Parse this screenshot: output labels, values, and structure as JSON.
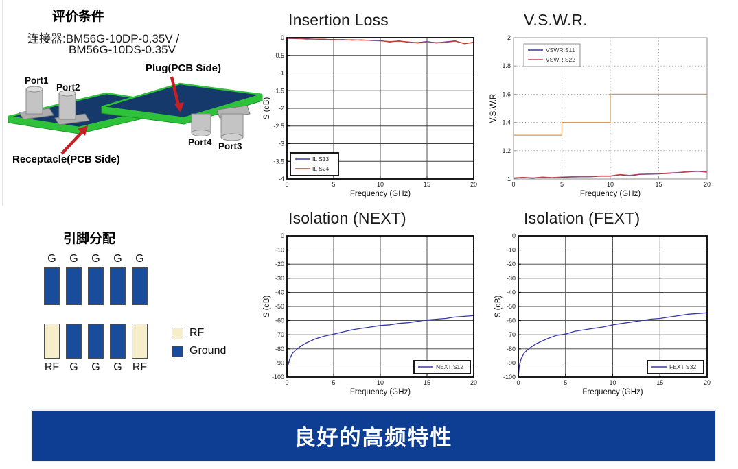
{
  "evaluation": {
    "title": "评价条件",
    "connector_line1": "连接器:BM56G-10DP-0.35V /",
    "connector_line2": "BM56G-10DS-0.35V",
    "diagram_labels": {
      "port1": "Port1",
      "port2": "Port2",
      "port3": "Port3",
      "port4": "Port4",
      "plug": "Plug(PCB Side)",
      "receptacle": "Receptacle(PCB Side)"
    }
  },
  "pin_assignment": {
    "title": "引脚分配",
    "top_labels": [
      "G",
      "G",
      "G",
      "G",
      "G"
    ],
    "bottom_labels": [
      "RF",
      "G",
      "G",
      "G",
      "RF"
    ],
    "legend": [
      {
        "label": "RF",
        "type": "rf"
      },
      {
        "label": "Ground",
        "type": "ground"
      }
    ],
    "colors": {
      "rf": "#f6eecb",
      "ground": "#1a4c9c"
    }
  },
  "banner": {
    "text": "良好的高频特性",
    "color": "#0d3e94"
  },
  "chart_data": [
    {
      "type": "line",
      "title": "Insertion Loss",
      "xlabel": "Frequency (GHz)",
      "ylabel": "S (dB)",
      "xlim": [
        0,
        20
      ],
      "ylim": [
        -4,
        0
      ],
      "xticks": [
        0,
        5,
        10,
        15,
        20
      ],
      "yticks": [
        0,
        -0.5,
        -1,
        -1.5,
        -2,
        -2.5,
        -3,
        -3.5,
        -4
      ],
      "grid": "solid",
      "legend_pos": "bottom-left",
      "series": [
        {
          "name": "IL S13",
          "color": "#3a3aac",
          "x": [
            0,
            1,
            2,
            3,
            4,
            5,
            6,
            7,
            8,
            9,
            10,
            11,
            12,
            13,
            14,
            15,
            16,
            17,
            18,
            19,
            20
          ],
          "y": [
            -0.02,
            -0.03,
            -0.03,
            -0.04,
            -0.05,
            -0.05,
            -0.06,
            -0.06,
            -0.07,
            -0.07,
            -0.08,
            -0.12,
            -0.09,
            -0.13,
            -0.14,
            -0.11,
            -0.15,
            -0.12,
            -0.09,
            -0.17,
            -0.13
          ]
        },
        {
          "name": "IL S24",
          "color": "#c44134",
          "x": [
            0,
            1,
            2,
            3,
            4,
            5,
            6,
            7,
            8,
            9,
            10,
            11,
            12,
            13,
            14,
            15,
            16,
            17,
            18,
            19,
            20
          ],
          "y": [
            -0.02,
            -0.02,
            -0.04,
            -0.04,
            -0.04,
            -0.06,
            -0.05,
            -0.07,
            -0.06,
            -0.08,
            -0.09,
            -0.11,
            -0.1,
            -0.12,
            -0.15,
            -0.12,
            -0.14,
            -0.13,
            -0.1,
            -0.16,
            -0.14
          ]
        }
      ]
    },
    {
      "type": "line",
      "title": "V.S.W.R.",
      "xlabel": "Frequency (GHz)",
      "ylabel": "V.S.W.R",
      "xlim": [
        0,
        20
      ],
      "ylim": [
        1,
        2
      ],
      "xticks": [
        0,
        5,
        10,
        15,
        20
      ],
      "yticks": [
        1,
        1.2,
        1.4,
        1.6,
        1.8,
        2
      ],
      "grid": "dotted",
      "legend_pos": "top-left",
      "series": [
        {
          "name": "VSWR S11",
          "color": "#3c3c92",
          "x": [
            0,
            1,
            2,
            3,
            4,
            5,
            6,
            7,
            8,
            9,
            10,
            11,
            12,
            13,
            14,
            15,
            16,
            17,
            18,
            19,
            20
          ],
          "y": [
            1.005,
            1.01,
            1.006,
            1.012,
            1.008,
            1.012,
            1.014,
            1.016,
            1.016,
            1.02,
            1.02,
            1.03,
            1.022,
            1.032,
            1.034,
            1.036,
            1.04,
            1.044,
            1.05,
            1.054,
            1.048
          ]
        },
        {
          "name": "VSWR S22",
          "color": "#c24854",
          "x": [
            0,
            1,
            2,
            3,
            4,
            5,
            6,
            7,
            8,
            9,
            10,
            11,
            12,
            13,
            14,
            15,
            16,
            17,
            18,
            19,
            20
          ],
          "y": [
            1.008,
            1.012,
            1.008,
            1.014,
            1.01,
            1.014,
            1.016,
            1.018,
            1.018,
            1.022,
            1.022,
            1.032,
            1.026,
            1.034,
            1.036,
            1.038,
            1.042,
            1.046,
            1.052,
            1.056,
            1.05
          ]
        },
        {
          "name": "spec limit",
          "color": "#d29a58",
          "in_legend": false,
          "x": [
            0,
            5,
            5,
            10,
            10,
            20
          ],
          "y": [
            1.31,
            1.31,
            1.4,
            1.4,
            1.6,
            1.6
          ]
        }
      ]
    },
    {
      "type": "line",
      "title": "Isolation (NEXT)",
      "xlabel": "Frequency (GHz)",
      "ylabel": "S (dB)",
      "xlim": [
        0,
        20
      ],
      "ylim": [
        -100,
        0
      ],
      "xticks": [
        0,
        5,
        10,
        15,
        20
      ],
      "yticks": [
        0,
        -10,
        -20,
        -30,
        -40,
        -50,
        -60,
        -70,
        -80,
        -90,
        -100
      ],
      "grid": "solid",
      "legend_pos": "bottom-right",
      "series": [
        {
          "name": "NEXT S12",
          "color": "#3737aa",
          "x": [
            0,
            0.1,
            0.3,
            0.6,
            1,
            1.5,
            2,
            2.5,
            3,
            4,
            5,
            6,
            7,
            8,
            9,
            10,
            11,
            12,
            13,
            14,
            15,
            16,
            17,
            18,
            19,
            20
          ],
          "y": [
            -100,
            -92,
            -87,
            -83,
            -80.5,
            -78,
            -76,
            -74.5,
            -73,
            -71,
            -69.5,
            -68,
            -66.5,
            -65.5,
            -64.5,
            -63.5,
            -63,
            -62,
            -61.5,
            -60.5,
            -59.5,
            -59,
            -58.5,
            -57.5,
            -57,
            -56.5
          ]
        }
      ]
    },
    {
      "type": "line",
      "title": "Isolation (FEXT)",
      "xlabel": "Frequency (GHz)",
      "ylabel": "S (dB)",
      "xlim": [
        0,
        20
      ],
      "ylim": [
        -100,
        0
      ],
      "xticks": [
        0,
        5,
        10,
        15,
        20
      ],
      "yticks": [
        0,
        -10,
        -20,
        -30,
        -40,
        -50,
        -60,
        -70,
        -80,
        -90,
        -100
      ],
      "grid": "solid",
      "legend_pos": "bottom-right",
      "series": [
        {
          "name": "FEXT S32",
          "color": "#3737aa",
          "x": [
            0,
            0.1,
            0.3,
            0.6,
            1,
            1.5,
            2,
            2.5,
            3,
            4,
            5,
            6,
            7,
            8,
            9,
            10,
            11,
            12,
            13,
            14,
            15,
            16,
            17,
            18,
            19,
            20
          ],
          "y": [
            -100,
            -92,
            -87,
            -83,
            -80.5,
            -78,
            -76,
            -74.5,
            -73,
            -70.5,
            -69.5,
            -67.5,
            -66.5,
            -65.5,
            -64.5,
            -63,
            -62,
            -61,
            -60,
            -59,
            -58.5,
            -57.5,
            -56.5,
            -55.5,
            -55,
            -54.5
          ]
        }
      ]
    }
  ]
}
